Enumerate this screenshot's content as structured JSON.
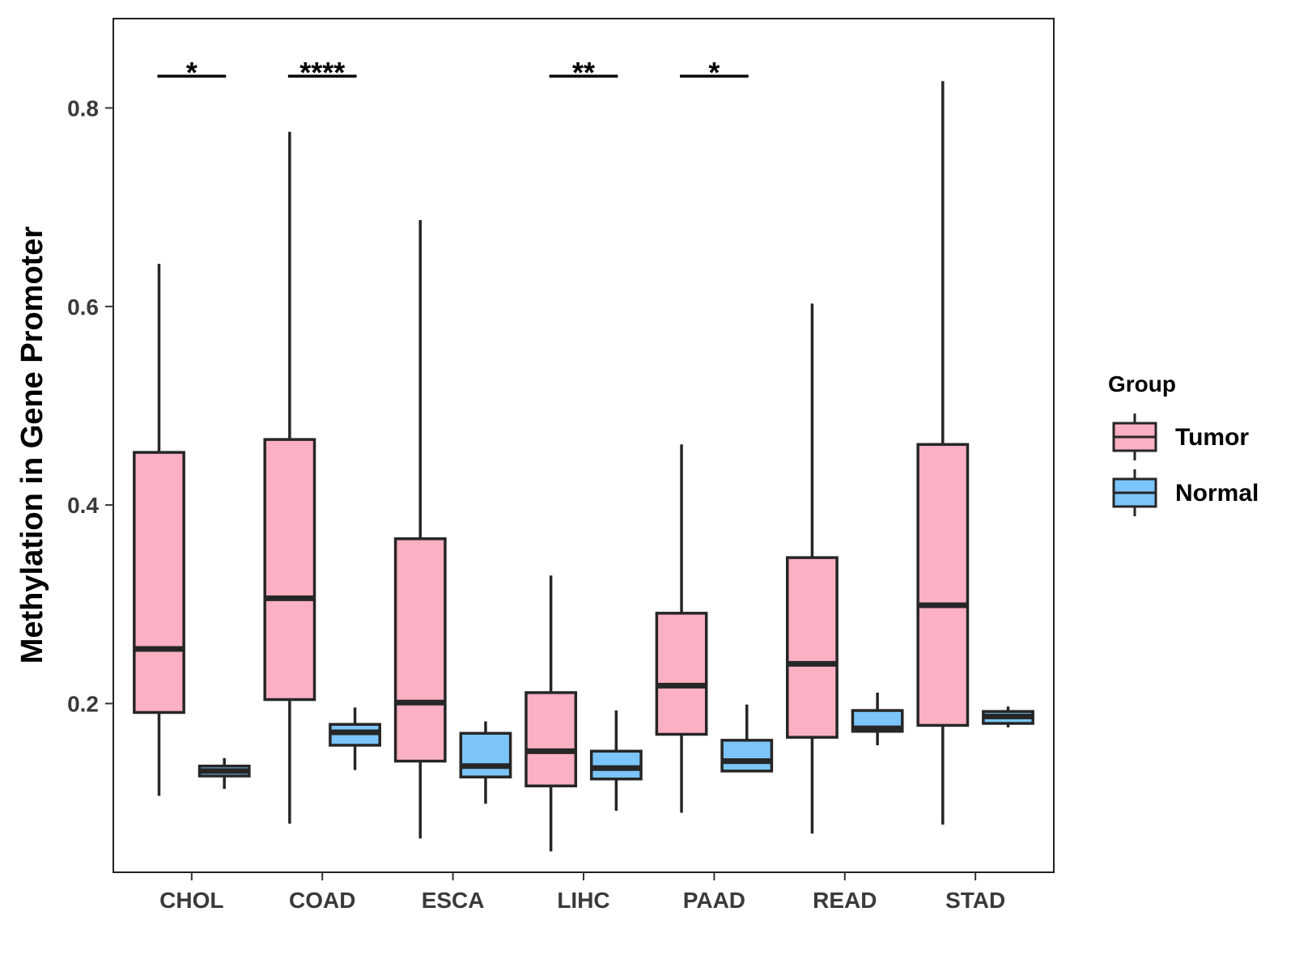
{
  "chart_data": {
    "type": "box",
    "title": "",
    "xlabel": "",
    "ylabel": "Methylation in Gene Promoter",
    "ylim": [
      0.03,
      0.89
    ],
    "yticks": [
      0.2,
      0.4,
      0.6,
      0.8
    ],
    "ytick_labels": [
      "0.2",
      "0.4",
      "0.6",
      "0.8"
    ],
    "grid": false,
    "legend": {
      "title": "Group",
      "position": "right",
      "entries": [
        {
          "name": "Tumor",
          "color": "#FCB0C3"
        },
        {
          "name": "Normal",
          "color": "#7CC5FA"
        }
      ]
    },
    "categories": [
      "CHOL",
      "COAD",
      "ESCA",
      "LIHC",
      "PAAD",
      "READ",
      "STAD"
    ],
    "series": [
      {
        "name": "Tumor",
        "color": "#FCB0C3",
        "boxes": [
          {
            "min": 0.107,
            "q1": 0.191,
            "median": 0.255,
            "q3": 0.453,
            "max": 0.643
          },
          {
            "min": 0.079,
            "q1": 0.204,
            "median": 0.306,
            "q3": 0.466,
            "max": 0.776
          },
          {
            "min": 0.064,
            "q1": 0.142,
            "median": 0.201,
            "q3": 0.366,
            "max": 0.687
          },
          {
            "min": 0.051,
            "q1": 0.117,
            "median": 0.152,
            "q3": 0.211,
            "max": 0.329
          },
          {
            "min": 0.09,
            "q1": 0.169,
            "median": 0.218,
            "q3": 0.291,
            "max": 0.461
          },
          {
            "min": 0.069,
            "q1": 0.166,
            "median": 0.24,
            "q3": 0.347,
            "max": 0.603
          },
          {
            "min": 0.078,
            "q1": 0.178,
            "median": 0.299,
            "q3": 0.461,
            "max": 0.827
          }
        ]
      },
      {
        "name": "Normal",
        "color": "#7CC5FA",
        "boxes": [
          {
            "min": 0.114,
            "q1": 0.127,
            "median": 0.132,
            "q3": 0.137,
            "max": 0.145
          },
          {
            "min": 0.133,
            "q1": 0.158,
            "median": 0.171,
            "q3": 0.179,
            "max": 0.196
          },
          {
            "min": 0.099,
            "q1": 0.126,
            "median": 0.137,
            "q3": 0.17,
            "max": 0.182
          },
          {
            "min": 0.092,
            "q1": 0.124,
            "median": 0.135,
            "q3": 0.152,
            "max": 0.193
          },
          {
            "min": 0.132,
            "q1": 0.132,
            "median": 0.142,
            "q3": 0.163,
            "max": 0.199
          },
          {
            "min": 0.158,
            "q1": 0.172,
            "median": 0.175,
            "q3": 0.193,
            "max": 0.211
          },
          {
            "min": 0.176,
            "q1": 0.18,
            "median": 0.187,
            "q3": 0.192,
            "max": 0.197
          }
        ]
      }
    ],
    "annotations": [
      {
        "category": "CHOL",
        "label": "*"
      },
      {
        "category": "COAD",
        "label": "****"
      },
      {
        "category": "LIHC",
        "label": "**"
      },
      {
        "category": "PAAD",
        "label": "*"
      }
    ],
    "annotation_level": 0.832
  }
}
